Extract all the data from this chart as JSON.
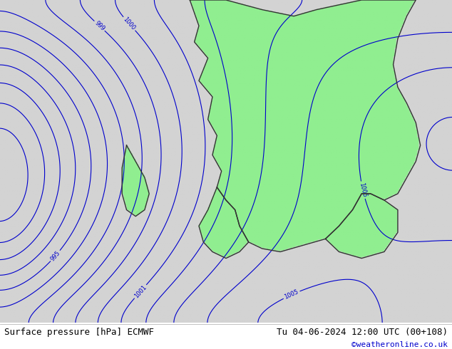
{
  "title_left": "Surface pressure [hPa] ECMWF",
  "title_right": "Tu 04-06-2024 12:00 UTC (00+108)",
  "credit": "©weatheronline.co.uk",
  "bg_color": "#d3d3d3",
  "land_color": "#90ee90",
  "sea_color": "#d3d3d3",
  "contour_color": "#0000cc",
  "label_color": "#0000cc",
  "border_color": "#333333",
  "footer_bg": "#ffffff",
  "footer_text_color": "#000000",
  "credit_color": "#0000cc",
  "pressure_min": 975,
  "pressure_max": 1012,
  "contour_interval": 1,
  "figsize": [
    6.34,
    4.9
  ],
  "dpi": 100
}
